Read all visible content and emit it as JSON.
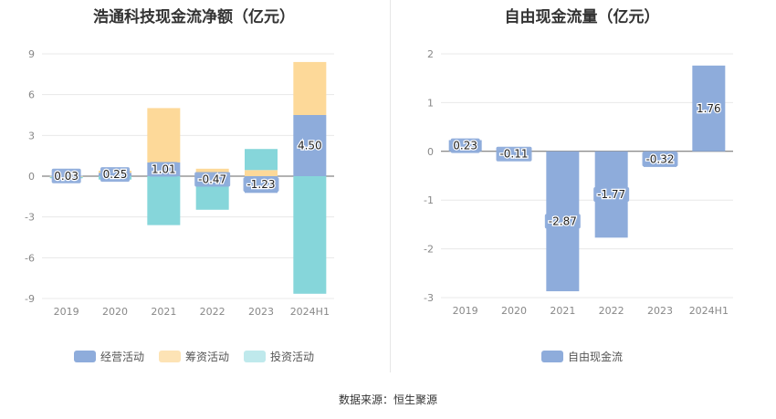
{
  "chart_data": [
    {
      "type": "bar",
      "stacked": true,
      "title": "浩通科技现金流净额（亿元）",
      "categories": [
        "2019",
        "2020",
        "2021",
        "2022",
        "2023",
        "2024H1"
      ],
      "ylim": [
        -9,
        9
      ],
      "yticks": [
        9,
        6,
        3,
        0,
        -3,
        -6,
        -9
      ],
      "grid": true,
      "legend_position": "bottom",
      "series": [
        {
          "name": "经营活动",
          "color": "#8eacdb",
          "values": [
            0.03,
            0.25,
            1.01,
            -0.47,
            -1.23,
            4.5
          ],
          "labels": [
            "0.03",
            "0.25",
            "1.01",
            "-0.47",
            "-1.23",
            "4.50"
          ]
        },
        {
          "name": "筹资活动",
          "color": "#fdd999",
          "values": [
            -0.05,
            0.15,
            4.0,
            0.55,
            0.45,
            3.9
          ]
        },
        {
          "name": "投资活动",
          "color": "#86d6da",
          "values": [
            -0.1,
            -0.25,
            -3.6,
            -2.0,
            1.55,
            -8.65
          ]
        }
      ]
    },
    {
      "type": "bar",
      "title": "自由现金流量（亿元）",
      "categories": [
        "2019",
        "2020",
        "2021",
        "2022",
        "2023",
        "2024H1"
      ],
      "ylim": [
        -3,
        2
      ],
      "yticks": [
        2,
        1,
        0,
        -1,
        -2,
        -3
      ],
      "grid": true,
      "legend_position": "bottom",
      "series": [
        {
          "name": "自由现金流",
          "color": "#8eacdb",
          "values": [
            0.23,
            -0.11,
            -2.87,
            -1.77,
            -0.32,
            1.76
          ],
          "labels": [
            "0.23",
            "-0.11",
            "-2.87",
            "-1.77",
            "-0.32",
            "1.76"
          ]
        }
      ]
    }
  ],
  "legend_left": [
    {
      "label": "经营活动",
      "color": "#8eacdb"
    },
    {
      "label": "筹资活动",
      "color": "#fde3b5"
    },
    {
      "label": "投资活动",
      "color": "#bfe9ec"
    }
  ],
  "legend_right": [
    {
      "label": "自由现金流",
      "color": "#8eacdb"
    }
  ],
  "source": "数据来源：恒生聚源"
}
